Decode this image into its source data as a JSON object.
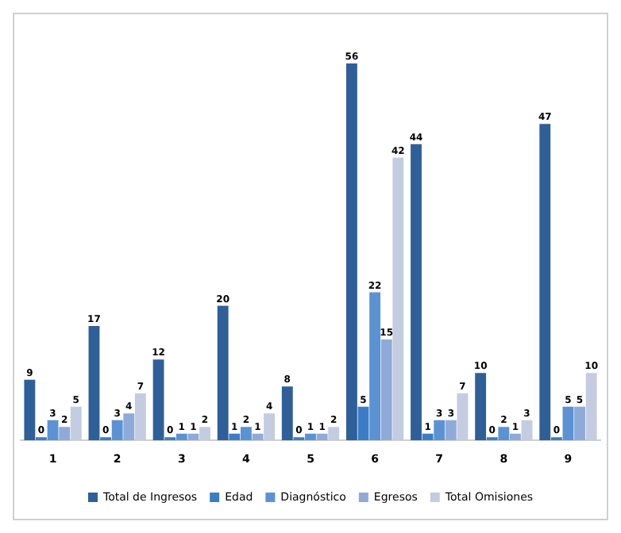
{
  "chart_data": {
    "type": "bar",
    "categories": [
      "1",
      "2",
      "3",
      "4",
      "5",
      "6",
      "7",
      "8",
      "9"
    ],
    "series": [
      {
        "name": "Total de Ingresos",
        "color": "#2f5f98",
        "values": [
          9,
          17,
          12,
          20,
          8,
          56,
          44,
          10,
          47
        ]
      },
      {
        "name": "Edad",
        "color": "#3b7dc4",
        "values": [
          0,
          0,
          0,
          1,
          0,
          5,
          1,
          0,
          0
        ]
      },
      {
        "name": "Diagnóstico",
        "color": "#5b92d3",
        "values": [
          3,
          3,
          1,
          2,
          1,
          22,
          3,
          2,
          5
        ]
      },
      {
        "name": "Egresos",
        "color": "#8eaad8",
        "values": [
          2,
          4,
          1,
          1,
          1,
          15,
          3,
          1,
          5
        ]
      },
      {
        "name": "Total Omisiones",
        "color": "#c3cce0",
        "values": [
          5,
          7,
          2,
          4,
          2,
          42,
          7,
          3,
          10
        ]
      }
    ],
    "data_labels": true,
    "legend": "bottom",
    "grid": false
  }
}
